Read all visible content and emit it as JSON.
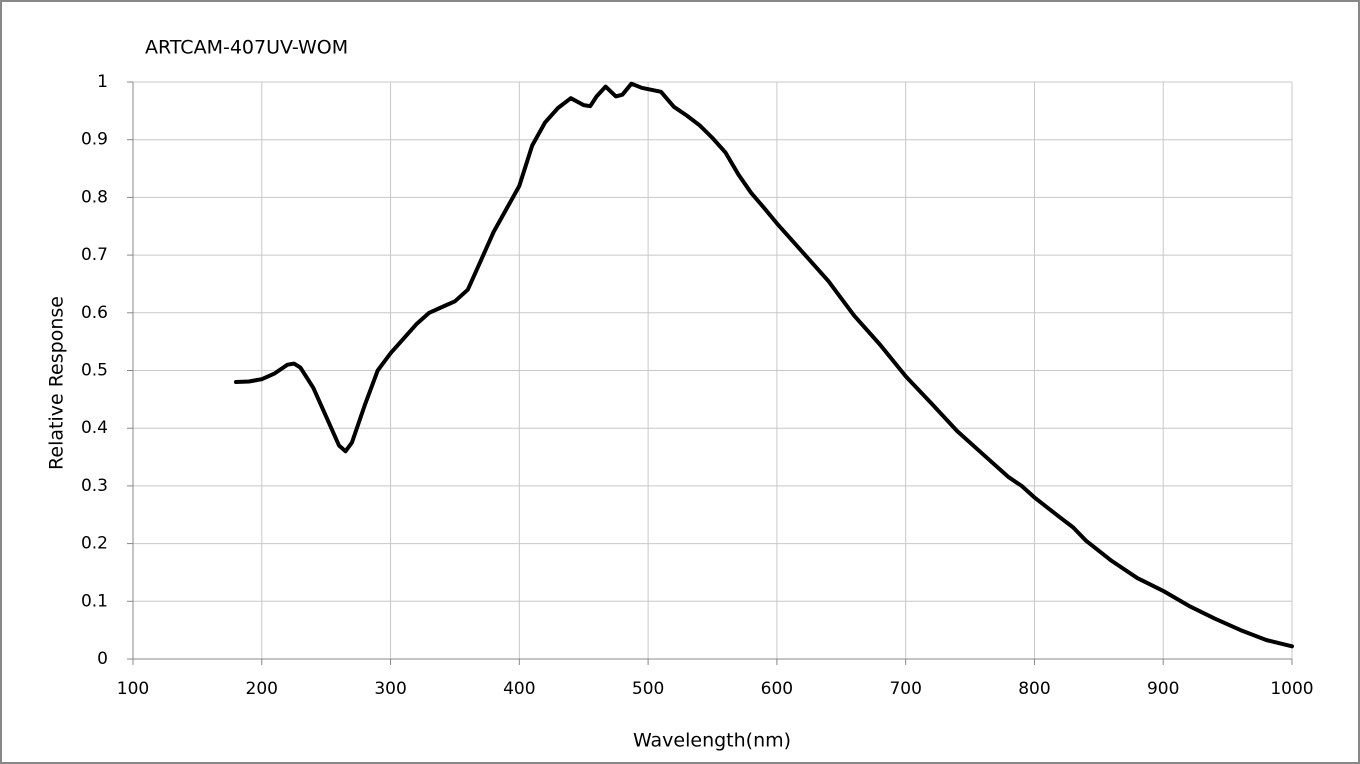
{
  "chart_data": {
    "type": "line",
    "title": "ARTCAM-407UV-WOM",
    "x_label": "Wavelength(nm)",
    "y_label": "Relative Response",
    "xlim": [
      100,
      1000
    ],
    "xticks": [
      100,
      200,
      300,
      400,
      500,
      600,
      700,
      800,
      900,
      1000
    ],
    "ylim": [
      0,
      1
    ],
    "yticks": [
      0,
      0.1,
      0.2,
      0.3,
      0.4,
      0.5,
      0.6,
      0.7,
      0.8,
      0.9,
      1
    ],
    "grid": true,
    "x": [
      180,
      190,
      200,
      210,
      220,
      225,
      230,
      240,
      250,
      260,
      265,
      270,
      280,
      290,
      300,
      310,
      320,
      330,
      340,
      350,
      360,
      370,
      380,
      390,
      400,
      410,
      420,
      430,
      440,
      450,
      455,
      460,
      467,
      475,
      480,
      487,
      495,
      510,
      520,
      530,
      540,
      550,
      560,
      570,
      580,
      590,
      600,
      620,
      640,
      650,
      660,
      680,
      700,
      720,
      740,
      760,
      780,
      790,
      800,
      820,
      830,
      840,
      860,
      880,
      900,
      920,
      940,
      960,
      980,
      1000
    ],
    "series": [
      {
        "name": "Relative Response",
        "color": "#000000",
        "values": [
          0.48,
          0.481,
          0.485,
          0.495,
          0.51,
          0.512,
          0.505,
          0.47,
          0.42,
          0.37,
          0.36,
          0.375,
          0.44,
          0.5,
          0.53,
          0.555,
          0.58,
          0.6,
          0.61,
          0.62,
          0.64,
          0.69,
          0.74,
          0.78,
          0.82,
          0.89,
          0.93,
          0.955,
          0.972,
          0.96,
          0.958,
          0.975,
          0.992,
          0.975,
          0.978,
          0.997,
          0.99,
          0.983,
          0.957,
          0.942,
          0.925,
          0.903,
          0.878,
          0.84,
          0.808,
          0.782,
          0.755,
          0.705,
          0.655,
          0.625,
          0.595,
          0.545,
          0.49,
          0.443,
          0.395,
          0.355,
          0.315,
          0.3,
          0.28,
          0.245,
          0.228,
          0.205,
          0.17,
          0.14,
          0.118,
          0.092,
          0.07,
          0.05,
          0.033,
          0.022
        ]
      }
    ]
  }
}
